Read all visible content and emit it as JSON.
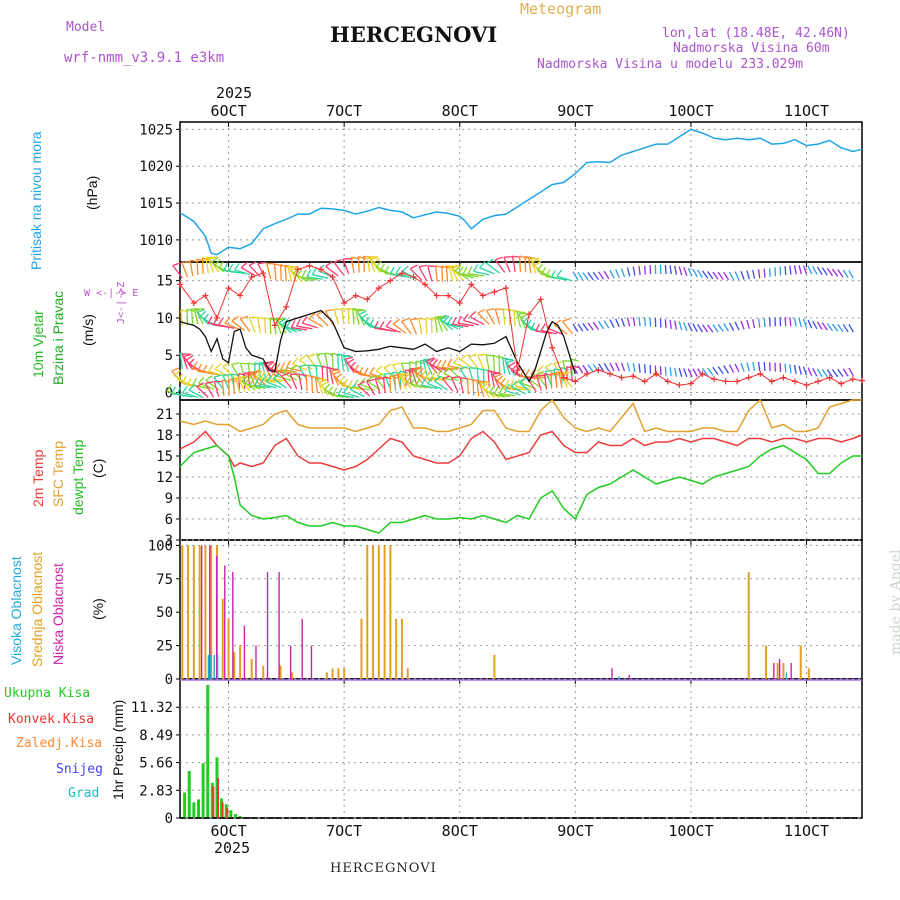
{
  "header": {
    "model_label": "Model",
    "model_name": "wrf-nmm_v3.9.1 e3km",
    "meteogram": "Meteogram",
    "station": "HERCEGNOVI",
    "lonlat": "lon,lat (18.48E, 42.46N)",
    "altitude": "Nadmorska Visina 60m",
    "model_altitude": "Nadmorska Visina u modelu 233.029m",
    "year": "2025",
    "footer_station": "HERCEGNOVI",
    "watermark": "made by Angel"
  },
  "colors": {
    "pressure": "#1ea5e8",
    "temp2m": "#ee3b3b",
    "sfc": "#e0a030",
    "dewpt": "#20cc20",
    "low_cloud": "#cc22aa",
    "mid_cloud": "#e0a020",
    "high_cloud": "#22aadd",
    "total_precip": "#22cc22",
    "conv_precip": "#ee3333",
    "frozen": "#ff8833",
    "snow": "#4444ee",
    "hail": "#22bbbb",
    "wind_speed": "#111111",
    "gust": "#ee3333",
    "wind_side": "#22bb22",
    "wind_side2": "#22aa22",
    "compass": "#bb55cc",
    "model": "#aa55cc"
  },
  "panels": {
    "pressure": {
      "label_line1": "Pritisak na nivou mora",
      "unit": "(hPa)"
    },
    "wind": {
      "label_line1": "10m Vjetar",
      "label_line2": "Brzina i Pravac",
      "unit": "(m/s)",
      "compass_north": "Z",
      "compass_south": "J",
      "compass_west": "W",
      "compass_east": "E",
      "compass_ns": "<-|->",
      "compass_ew": "<-|->"
    },
    "temp": {
      "label_2m": "2m Temp",
      "label_sfc": "SFC Temp",
      "label_dew": "dewpt Temp",
      "unit": "(C)"
    },
    "cloud": {
      "label_high": "Visoka Oblacnost",
      "label_mid": "Srednja Oblacnost",
      "label_low": "Niska Oblacnost",
      "unit": "(%)"
    },
    "precip": {
      "unit": "1hr Precip (mm)",
      "legend": [
        "Ukupna Kisa",
        "Konvek.Kisa",
        "Zaledj.Kisa",
        "Snijeg",
        "Grad"
      ]
    }
  },
  "chart_data": {
    "type": "line",
    "x_unit": "day of October 2025 (fractional)",
    "xlim": [
      5.58,
      11.48
    ],
    "date_ticks": [
      "6OCT",
      "7OCT",
      "8OCT",
      "9OCT",
      "10OCT",
      "11OCT"
    ],
    "date_tick_days": [
      6,
      7,
      8,
      9,
      10,
      11
    ],
    "pressure": {
      "ylim": [
        1007,
        1026
      ],
      "ticks": [
        1010,
        1015,
        1020,
        1025
      ],
      "x": [
        5.58,
        5.7,
        5.8,
        5.85,
        5.9,
        5.95,
        6.0,
        6.1,
        6.2,
        6.3,
        6.4,
        6.5,
        6.6,
        6.7,
        6.8,
        6.9,
        7.0,
        7.1,
        7.2,
        7.3,
        7.4,
        7.5,
        7.6,
        7.7,
        7.8,
        7.9,
        8.0,
        8.05,
        8.1,
        8.2,
        8.3,
        8.4,
        8.5,
        8.6,
        8.7,
        8.8,
        8.9,
        9.0,
        9.1,
        9.2,
        9.3,
        9.4,
        9.5,
        9.6,
        9.7,
        9.8,
        9.9,
        10.0,
        10.1,
        10.2,
        10.3,
        10.4,
        10.5,
        10.6,
        10.7,
        10.8,
        10.9,
        11.0,
        11.1,
        11.2,
        11.3,
        11.4,
        11.48
      ],
      "y": [
        1013.7,
        1012.5,
        1010.5,
        1008.2,
        1008.0,
        1008.5,
        1009.0,
        1008.8,
        1009.5,
        1011.5,
        1012.2,
        1012.8,
        1013.5,
        1013.5,
        1014.3,
        1014.2,
        1014.0,
        1013.5,
        1013.9,
        1014.4,
        1014.0,
        1013.8,
        1013.0,
        1013.4,
        1013.8,
        1013.6,
        1013.2,
        1012.5,
        1011.5,
        1012.8,
        1013.3,
        1013.5,
        1014.5,
        1015.5,
        1016.5,
        1017.5,
        1017.8,
        1019.0,
        1020.5,
        1020.6,
        1020.5,
        1021.5,
        1022.0,
        1022.5,
        1023.0,
        1023.0,
        1024.0,
        1025.0,
        1024.5,
        1023.8,
        1023.6,
        1023.8,
        1023.6,
        1023.8,
        1023.0,
        1023.1,
        1023.6,
        1022.8,
        1023.0,
        1023.5,
        1022.5,
        1022.0,
        1022.3
      ]
    },
    "wind": {
      "ylim": [
        -1,
        17.5
      ],
      "ticks": [
        0,
        5,
        10,
        15
      ],
      "speed_x": [
        5.58,
        5.65,
        5.7,
        5.75,
        5.8,
        5.85,
        5.9,
        5.95,
        6.0,
        6.05,
        6.1,
        6.15,
        6.2,
        6.3,
        6.35,
        6.4,
        6.45,
        6.5,
        6.6,
        6.7,
        6.8,
        6.9,
        7.0,
        7.1,
        7.2,
        7.3,
        7.4,
        7.5,
        7.6,
        7.7,
        7.8,
        7.9,
        8.0,
        8.1,
        8.2,
        8.3,
        8.4,
        8.5,
        8.6,
        8.65,
        8.7,
        8.75,
        8.8,
        8.85,
        8.9,
        8.95,
        9.0
      ],
      "speed_y": [
        9.5,
        9.2,
        9.0,
        8.5,
        7.5,
        5.5,
        7.2,
        4.5,
        4.0,
        8.2,
        8.5,
        6.0,
        5.0,
        4.5,
        3.0,
        2.8,
        7.0,
        9.5,
        10.0,
        10.5,
        11.0,
        9.5,
        6.0,
        5.5,
        5.6,
        5.8,
        6.2,
        6.0,
        5.8,
        6.5,
        5.5,
        6.0,
        5.5,
        6.5,
        6.4,
        6.6,
        7.5,
        4.0,
        1.5,
        3.0,
        5.5,
        8.0,
        9.5,
        9.0,
        7.5,
        5.0,
        2.5
      ],
      "gust_x": [
        5.58,
        5.7,
        5.8,
        5.9,
        6.0,
        6.1,
        6.2,
        6.3,
        6.4,
        6.5,
        6.6,
        6.7,
        6.8,
        6.9,
        7.0,
        7.1,
        7.2,
        7.3,
        7.4,
        7.5,
        7.6,
        7.7,
        7.8,
        7.9,
        8.0,
        8.1,
        8.2,
        8.3,
        8.4,
        8.5,
        8.6,
        8.7,
        8.8,
        8.9,
        9.0,
        9.1,
        9.2,
        9.3,
        9.4,
        9.5,
        9.6,
        9.7,
        9.8,
        9.9,
        10.0,
        10.1,
        10.2,
        10.3,
        10.4,
        10.5,
        10.6,
        10.7,
        10.8,
        10.9,
        11.0,
        11.1,
        11.2,
        11.3,
        11.4,
        11.48
      ],
      "gust_y": [
        14.5,
        12.0,
        13.0,
        10.0,
        14.0,
        13.0,
        15.5,
        16.0,
        9.0,
        11.5,
        16.5,
        17.0,
        16.5,
        15.5,
        12.0,
        13.0,
        12.5,
        14.0,
        15.0,
        16.0,
        15.5,
        14.5,
        13.0,
        13.0,
        12.0,
        14.5,
        13.0,
        13.5,
        14.0,
        3.0,
        10.5,
        12.5,
        6.0,
        2.0,
        1.5,
        2.5,
        3.0,
        2.5,
        2.0,
        2.2,
        1.5,
        2.5,
        1.5,
        1.0,
        1.2,
        2.5,
        1.8,
        1.5,
        1.5,
        2.0,
        2.5,
        1.5,
        2.0,
        1.5,
        1.0,
        1.5,
        2.0,
        1.2,
        1.8,
        1.6
      ],
      "barb_rows": [
        15.5,
        8.5,
        2.5,
        1.0,
        0.0
      ],
      "barb_colors": [
        "#ff3b6b",
        "#ff8a2a",
        "#e6d22a",
        "#7ed82a",
        "#2ad4a0",
        "#2a9ee6",
        "#3b4fe6",
        "#9b2ae6"
      ]
    },
    "temperature": {
      "ylim": [
        3,
        23
      ],
      "ticks": [
        3,
        6,
        9,
        12,
        15,
        18,
        21
      ],
      "x": [
        5.58,
        5.7,
        5.8,
        5.9,
        6.0,
        6.05,
        6.1,
        6.2,
        6.3,
        6.4,
        6.5,
        6.6,
        6.7,
        6.8,
        6.9,
        7.0,
        7.1,
        7.2,
        7.3,
        7.4,
        7.5,
        7.6,
        7.7,
        7.8,
        7.9,
        8.0,
        8.1,
        8.2,
        8.3,
        8.4,
        8.5,
        8.6,
        8.7,
        8.8,
        8.9,
        9.0,
        9.1,
        9.2,
        9.3,
        9.4,
        9.5,
        9.6,
        9.7,
        9.8,
        9.9,
        10.0,
        10.1,
        10.2,
        10.3,
        10.4,
        10.5,
        10.6,
        10.7,
        10.8,
        10.9,
        11.0,
        11.1,
        11.2,
        11.3,
        11.4,
        11.48
      ],
      "t2m": [
        16.0,
        17.0,
        18.5,
        16.5,
        15.0,
        13.5,
        14.0,
        13.5,
        14.0,
        16.5,
        17.5,
        15.0,
        14.0,
        14.0,
        13.5,
        13.0,
        13.5,
        14.5,
        16.0,
        17.5,
        17.0,
        15.0,
        14.5,
        14.0,
        14.0,
        15.0,
        17.5,
        18.5,
        17.0,
        14.5,
        15.0,
        15.5,
        18.0,
        18.5,
        16.5,
        15.5,
        15.5,
        17.0,
        16.5,
        16.5,
        17.5,
        16.5,
        17.0,
        17.0,
        17.5,
        17.0,
        17.5,
        17.5,
        17.0,
        16.5,
        17.5,
        17.5,
        17.0,
        17.5,
        17.5,
        17.0,
        17.5,
        17.5,
        17.0,
        17.5,
        18.0
      ],
      "sfc": [
        20.0,
        19.5,
        20.0,
        19.5,
        19.5,
        19.0,
        18.5,
        19.0,
        19.5,
        21.0,
        21.5,
        19.5,
        19.0,
        19.0,
        19.0,
        19.0,
        18.5,
        19.0,
        19.5,
        21.5,
        22.0,
        19.0,
        19.0,
        18.5,
        18.5,
        19.0,
        19.5,
        21.5,
        21.5,
        19.0,
        18.5,
        18.5,
        21.5,
        23.0,
        20.5,
        19.0,
        18.5,
        19.0,
        18.5,
        20.5,
        22.5,
        18.5,
        19.0,
        18.5,
        18.5,
        18.5,
        19.0,
        19.0,
        18.5,
        18.5,
        21.5,
        23.0,
        19.0,
        19.5,
        18.5,
        18.5,
        19.0,
        22.0,
        22.5,
        23.0,
        23.0
      ],
      "dew": [
        13.5,
        15.5,
        16.0,
        16.5,
        15.0,
        12.0,
        8.0,
        6.5,
        6.0,
        6.2,
        6.5,
        5.5,
        5.0,
        5.0,
        5.5,
        5.0,
        5.0,
        4.5,
        4.0,
        5.5,
        5.5,
        6.0,
        6.5,
        6.0,
        6.0,
        6.2,
        6.0,
        6.5,
        6.0,
        5.5,
        6.5,
        6.0,
        9.0,
        10.0,
        7.5,
        6.0,
        9.5,
        10.5,
        11.0,
        12.0,
        13.0,
        12.0,
        11.0,
        11.5,
        12.0,
        11.5,
        11.0,
        12.0,
        12.5,
        13.0,
        13.5,
        15.0,
        16.0,
        16.5,
        15.5,
        14.5,
        12.5,
        12.5,
        14.0,
        15.0,
        15.0
      ]
    },
    "cloud": {
      "ylim": [
        0,
        104
      ],
      "ticks": [
        0,
        25,
        50,
        75,
        100
      ],
      "low_x": [
        5.75,
        5.82,
        5.88,
        5.95,
        6.02,
        6.12,
        6.22,
        6.32,
        6.42,
        6.52,
        6.62,
        6.7,
        9.3,
        9.45,
        10.7,
        10.75,
        10.85
      ],
      "low_y": [
        100,
        100,
        92,
        85,
        80,
        40,
        25,
        80,
        80,
        25,
        45,
        25,
        8,
        3,
        12,
        15,
        12
      ],
      "mid_x": [
        5.6,
        5.65,
        5.7,
        5.75,
        5.8,
        5.85,
        5.9,
        5.95,
        6.0,
        6.05,
        6.1,
        6.2,
        6.3,
        6.45,
        6.55,
        6.85,
        6.9,
        6.95,
        7.0,
        7.15,
        7.2,
        7.25,
        7.3,
        7.35,
        7.4,
        7.45,
        7.5,
        7.55,
        8.3,
        10.5,
        10.65,
        10.75,
        10.8,
        10.95,
        11.02
      ],
      "mid_y": [
        100,
        100,
        100,
        100,
        100,
        100,
        100,
        60,
        45,
        20,
        25,
        15,
        10,
        10,
        5,
        5,
        8,
        8,
        8,
        45,
        100,
        100,
        100,
        100,
        100,
        45,
        45,
        8,
        18,
        80,
        25,
        12,
        12,
        25,
        8
      ],
      "high_x": [
        5.8,
        5.82,
        5.85,
        5.88,
        9.35,
        10.8
      ],
      "high_y": [
        18,
        18,
        18,
        18,
        2,
        5
      ]
    },
    "precip": {
      "ylim": [
        0,
        14.2
      ],
      "ticks": [
        0,
        2.83,
        5.66,
        8.49,
        11.32
      ],
      "total_x": [
        5.62,
        5.66,
        5.7,
        5.74,
        5.78,
        5.82,
        5.86,
        5.9,
        5.94,
        5.98,
        6.02,
        6.06,
        6.1
      ],
      "total_y": [
        2.6,
        4.8,
        1.6,
        1.9,
        5.6,
        13.6,
        3.6,
        6.2,
        2.0,
        1.4,
        0.8,
        0.4,
        0.2
      ],
      "conv_x": [
        5.86,
        5.9,
        5.94,
        5.98
      ],
      "conv_y": [
        3.2,
        4.1,
        1.6,
        1.0
      ]
    }
  }
}
